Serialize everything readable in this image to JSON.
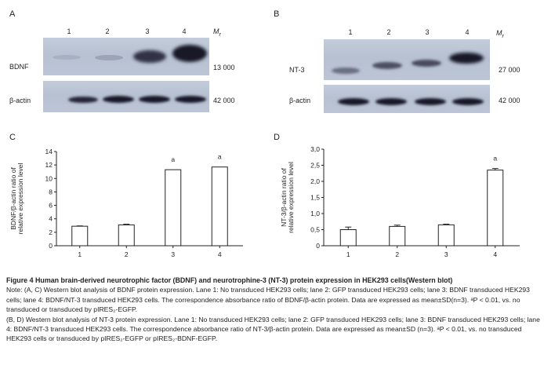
{
  "panels": {
    "A": {
      "letter": "A",
      "lanes": [
        "1",
        "2",
        "3",
        "4"
      ],
      "mr_label": "M",
      "mr_sub": "r",
      "target_label": "BDNF",
      "target_mw": "13 000",
      "control_label": "β-actin",
      "control_mw": "42 000"
    },
    "B": {
      "letter": "B",
      "lanes": [
        "1",
        "2",
        "3",
        "4"
      ],
      "mr_label": "M",
      "mr_sub": "r",
      "target_label": "NT-3",
      "target_mw": "27 000",
      "control_label": "β-actin",
      "control_mw": "42 000"
    }
  },
  "chart_data": [
    {
      "panel": "C",
      "type": "bar",
      "categories": [
        "1",
        "2",
        "3",
        "4"
      ],
      "values": [
        2.9,
        3.1,
        11.3,
        11.7
      ],
      "errors": [
        0.05,
        0.1,
        0.0,
        0.0
      ],
      "significance": [
        "",
        "",
        "a",
        "a"
      ],
      "ylabel_line1": "BDNF/β-actin ratio of",
      "ylabel_line2": "relative expression level",
      "ylim": [
        0,
        14
      ],
      "yticks": [
        "0",
        "2",
        "4",
        "6",
        "8",
        "10",
        "12",
        "14"
      ]
    },
    {
      "panel": "D",
      "type": "bar",
      "categories": [
        "1",
        "2",
        "3",
        "4"
      ],
      "values": [
        0.5,
        0.6,
        0.65,
        2.35
      ],
      "errors": [
        0.08,
        0.04,
        0.02,
        0.05
      ],
      "significance": [
        "",
        "",
        "",
        "a"
      ],
      "ylabel_line1": "NT-3/β-actin ratio of",
      "ylabel_line2": "relative expression level",
      "ylim": [
        0,
        3
      ],
      "yticks": [
        "0",
        "0,5",
        "1,0",
        "1,5",
        "2,0",
        "2,5",
        "3,0"
      ]
    }
  ],
  "caption": {
    "title": "Figure 4   Human brain-derived neurotrophic factor (BDNF) and neurotrophine-3 (NT-3) protein expression in HEK293 cells(Western blot)",
    "para1": "Note: (A, C) Western blot analysis of BDNF protein expression. Lane 1: No transduced HEK293 cells; lane 2: GFP transduced HEK293 cells; lane 3: BDNF transduced HEK293 cells; lane 4: BDNF/NT-3 transduced HEK293 cells. The correspondence absorbance ratio of BDNF/β-actin protein. Data are expressed as mean±SD(n=3). ᵃP < 0.01, vs. no transduced or transduced by pIRES₂-EGFP.",
    "para2": "(B, D) Western blot analysis of NT-3 protein expression. Lane 1: No transduced HEK293 cells; lane 2: GFP transduced HEK293 cells; lane 3: BDNF transduced HEK293 cells; lane 4: BDNF/NT-3 transduced HEK293 cells. The correspondence absorbance ratio of NT-3/β-actin protein. Data are expressed as mean±SD (n=3). ᵃP < 0.01, vs. no transduced HEK293 cells or transduced by pIRES₂-EGFP or pIRES₂-BDNF-EGFP."
  }
}
